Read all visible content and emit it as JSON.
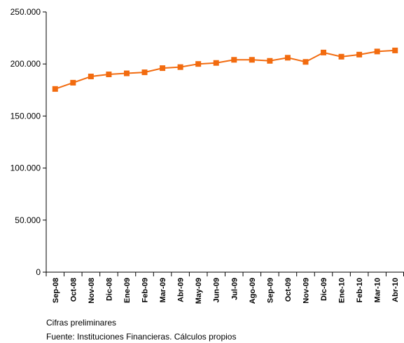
{
  "chart_data": {
    "type": "line",
    "title": "",
    "xlabel": "",
    "ylabel": "",
    "categories": [
      "Sep-08",
      "Oct-08",
      "Nov-08",
      "Dic-08",
      "Ene-09",
      "Feb-09",
      "Mar-09",
      "Abr-09",
      "May-09",
      "Jun-09",
      "Jul-09",
      "Ago-09",
      "Sep-09",
      "Oct-09",
      "Nov-09",
      "Dic-09",
      "Ene-10",
      "Feb-10",
      "Mar-10",
      "Abr-10"
    ],
    "series": [
      {
        "values": [
          176000,
          182000,
          188000,
          190000,
          191000,
          192000,
          196000,
          197000,
          200000,
          201000,
          204000,
          204000,
          203000,
          206000,
          202000,
          211000,
          207000,
          209000,
          212000,
          213000
        ]
      }
    ],
    "ylim": [
      0,
      250000
    ],
    "yticks": [
      0,
      50000,
      100000,
      150000,
      200000,
      250000
    ],
    "ytick_labels": [
      "0",
      "50.000",
      "100.000",
      "150.000",
      "200.000",
      "250.000"
    ],
    "grid": false,
    "line_color": "#f26b0f"
  },
  "notes": {
    "preliminary": "Cifras preliminares",
    "source": "Fuente: Instituciones Financieras. Cálculos propios"
  }
}
